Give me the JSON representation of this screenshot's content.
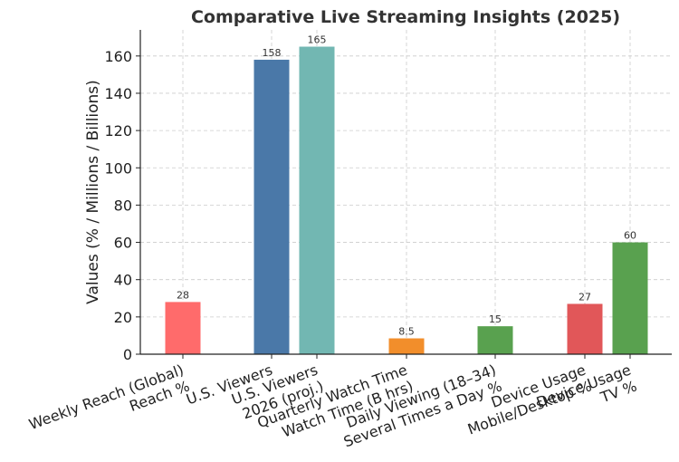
{
  "chart_data": {
    "type": "bar",
    "title": "Comparative Live Streaming Insights (2025)",
    "xlabel": "",
    "ylabel": "Values (% / Millions / Billions)",
    "ylim": [
      0,
      174
    ],
    "yticks": [
      0,
      20,
      40,
      60,
      80,
      100,
      120,
      140,
      160
    ],
    "grid": true,
    "bars": [
      {
        "label": "Weekly Reach (Global)\nReach %",
        "value": 28,
        "value_label": "28",
        "color": "#ff6b6b",
        "slot": 0
      },
      {
        "label": "U.S. Viewers",
        "value": 158,
        "value_label": "158",
        "color": "#4a78a8",
        "slot": 1
      },
      {
        "label": "U.S. Viewers\n2026 (proj.)",
        "value": 165,
        "value_label": "165",
        "color": "#72b7b2",
        "slot": 2
      },
      {
        "label": "Quarterly Watch Time\nWatch Time (B hrs)",
        "value": 8.5,
        "value_label": "8.5",
        "color": "#f28e2b",
        "slot": 3
      },
      {
        "label": "Daily Viewing (18–34)\nSeveral Times a Day %",
        "value": 15,
        "value_label": "15",
        "color": "#59a14f",
        "slot": 4
      },
      {
        "label": "Device Usage\nMobile/Desktop %",
        "value": 27,
        "value_label": "27",
        "color": "#e15759",
        "slot": 5
      },
      {
        "label": "Device Usage\nTV %",
        "value": 60,
        "value_label": "60",
        "color": "#59a14f",
        "slot": 6
      }
    ]
  }
}
